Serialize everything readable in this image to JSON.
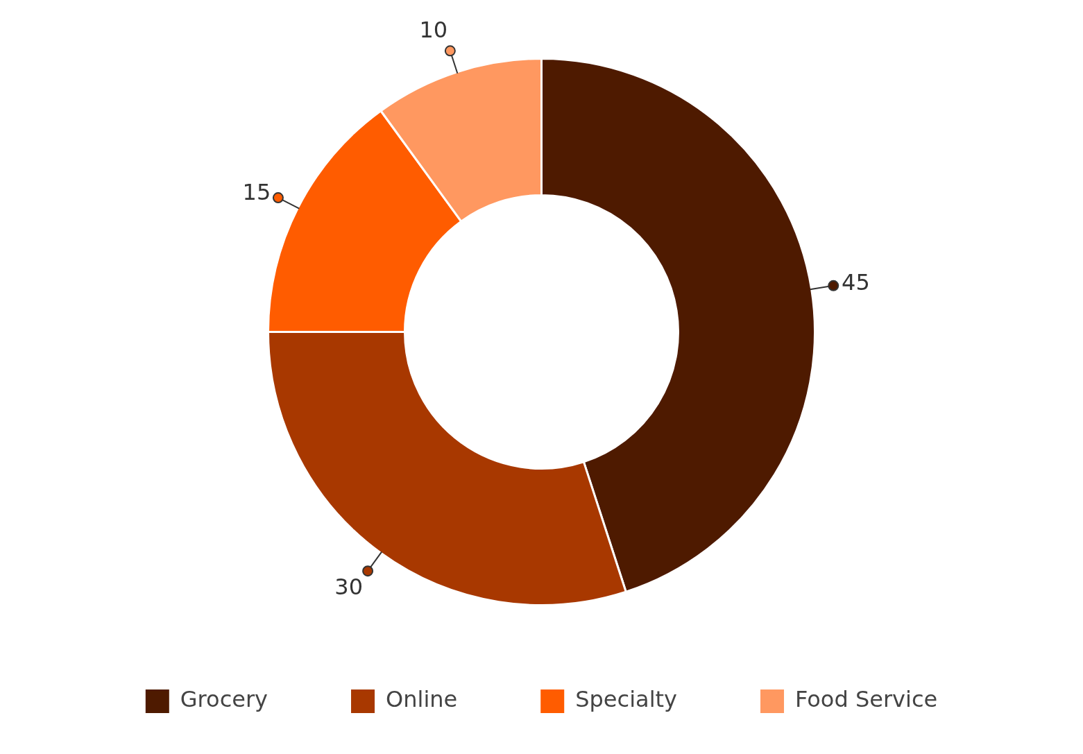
{
  "chart_data": {
    "type": "donut",
    "categories": [
      "Grocery",
      "Online",
      "Specialty",
      "Food Service"
    ],
    "values": [
      45,
      30,
      15,
      10
    ],
    "colors": [
      "#4e1a00",
      "#a83800",
      "#ff5c00",
      "#ff9860"
    ],
    "data_labels": true,
    "legend": "bottom"
  }
}
